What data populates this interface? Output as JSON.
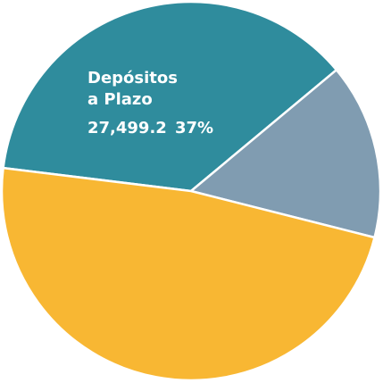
{
  "chart_data": {
    "type": "pie",
    "categories": [
      "Depósitos a Plazo",
      null,
      null
    ],
    "values": [
      37,
      15,
      48
    ],
    "value_labels": [
      "37%",
      null,
      null
    ],
    "amount_labels": [
      "27,499.2",
      null,
      null
    ],
    "colors": [
      "#2f8c9d",
      "#809cb1",
      "#f8b733"
    ]
  }
}
